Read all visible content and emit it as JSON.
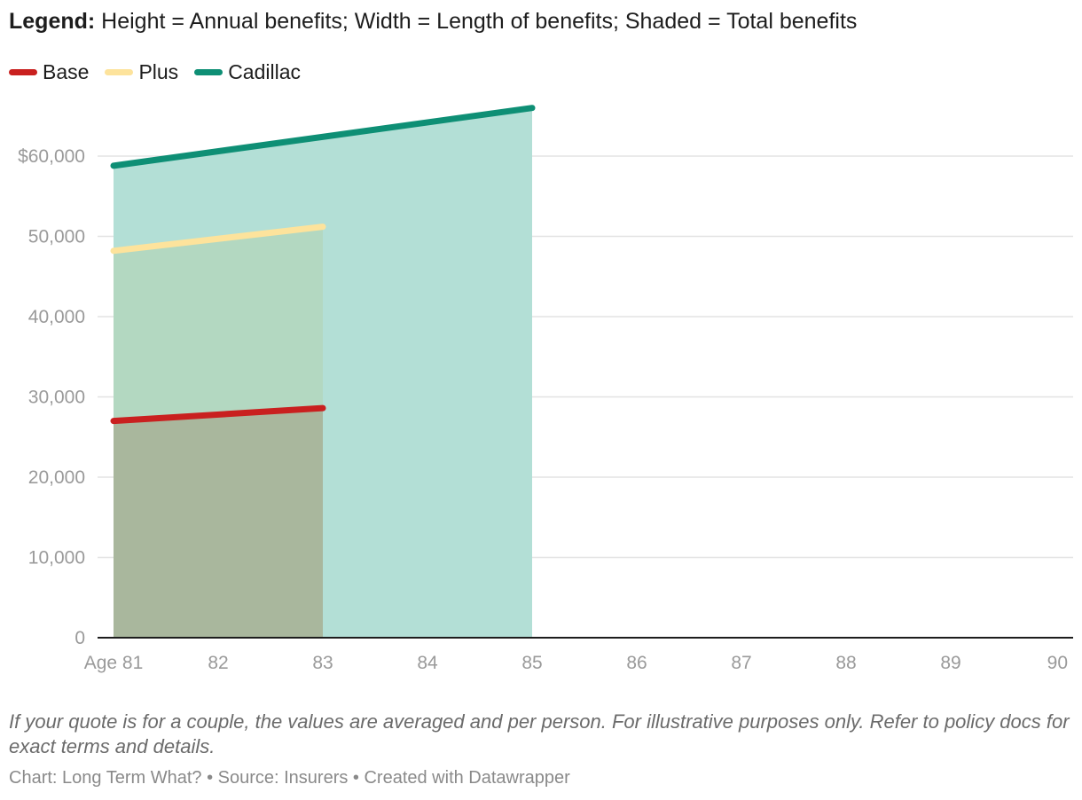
{
  "legend": {
    "label": "Legend:",
    "text": " Height = Annual benefits; Width = Length of benefits; Shaded = Total benefits"
  },
  "chart_data": {
    "type": "area",
    "title": "",
    "xlabel": "",
    "ylabel": "",
    "x_ticks": [
      "Age 81",
      "82",
      "83",
      "84",
      "85",
      "86",
      "87",
      "88",
      "89",
      "90"
    ],
    "xlim": [
      81,
      90
    ],
    "y_ticks": [
      {
        "value": 0,
        "label": "0"
      },
      {
        "value": 10000,
        "label": "10,000"
      },
      {
        "value": 20000,
        "label": "20,000"
      },
      {
        "value": 30000,
        "label": "30,000"
      },
      {
        "value": 40000,
        "label": "40,000"
      },
      {
        "value": 50000,
        "label": "50,000"
      },
      {
        "value": 60000,
        "label": "$60,000"
      }
    ],
    "ylim": [
      0,
      60000
    ],
    "grid": true,
    "legend_position": "top-left",
    "series": [
      {
        "name": "Cadillac",
        "color": "#0e8f75",
        "fill": "#b3dfd6",
        "x": [
          81,
          85
        ],
        "y": [
          58800,
          66000
        ]
      },
      {
        "name": "Plus",
        "color": "#fde39c",
        "fill": "#b3d8c1",
        "x": [
          81,
          83
        ],
        "y": [
          48200,
          51200
        ]
      },
      {
        "name": "Base",
        "color": "#c9201f",
        "fill": "#a9b79d",
        "x": [
          81,
          83
        ],
        "y": [
          27000,
          28600
        ]
      }
    ]
  },
  "footnote": "If your quote is for a couple, the values are averaged and per person. For illustrative purposes only. Refer to policy docs for exact terms and details.",
  "credit": "Chart: Long Term What? • Source: Insurers • Created with Datawrapper"
}
